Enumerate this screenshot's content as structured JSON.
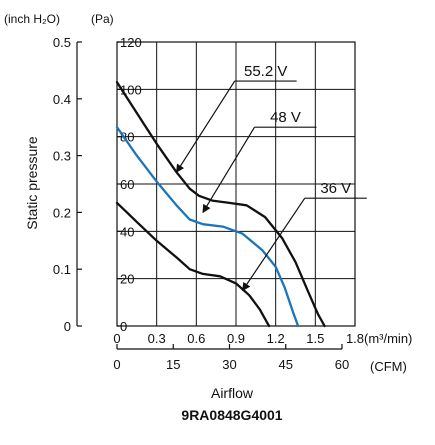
{
  "chart_data": {
    "type": "line",
    "title": "9RA0848G4001",
    "xlabel": "Airflow",
    "ylabel": "Static pressure",
    "primary_x_unit": "(m³/min)",
    "secondary_x_unit": "(CFM)",
    "left_unit": "(inch H₂O)",
    "pa_unit": "(Pa)",
    "xlim": [
      0,
      1.8
    ],
    "ylim": [
      0,
      120
    ],
    "grid": true,
    "x_ticks": [
      "0",
      "0.3",
      "0.6",
      "0.9",
      "1.2",
      "1.5",
      "1.8"
    ],
    "cfm_ticks": [
      "0",
      "15",
      "30",
      "45",
      "60"
    ],
    "cfm_values": [
      0,
      15,
      30,
      45,
      60
    ],
    "pa_ticks": [
      "0",
      "20",
      "40",
      "60",
      "80",
      "100",
      "120"
    ],
    "pa_values": [
      0,
      20,
      40,
      60,
      80,
      100,
      120
    ],
    "inch_ticks": [
      "0",
      "0.1",
      "0.2",
      "0.3",
      "0.4",
      "0.5"
    ],
    "inch_values": [
      0,
      0.1,
      0.2,
      0.3,
      0.4,
      0.5
    ],
    "series": [
      {
        "name": "55.2 V",
        "color": "#111111",
        "points": [
          [
            0,
            103
          ],
          [
            0.15,
            90
          ],
          [
            0.3,
            77
          ],
          [
            0.45,
            65
          ],
          [
            0.55,
            58
          ],
          [
            0.62,
            55
          ],
          [
            0.72,
            53
          ],
          [
            0.85,
            52
          ],
          [
            0.98,
            51
          ],
          [
            1.12,
            46
          ],
          [
            1.25,
            37
          ],
          [
            1.35,
            27
          ],
          [
            1.45,
            14
          ],
          [
            1.52,
            5
          ],
          [
            1.57,
            0
          ]
        ],
        "label_anchor": [
          0.45,
          65
        ],
        "label_box": [
          0.89,
          103.5
        ]
      },
      {
        "name": "48 V",
        "color": "#1a75bc",
        "points": [
          [
            0,
            84
          ],
          [
            0.15,
            72
          ],
          [
            0.3,
            61
          ],
          [
            0.45,
            51
          ],
          [
            0.55,
            45
          ],
          [
            0.65,
            43
          ],
          [
            0.8,
            42
          ],
          [
            0.95,
            39
          ],
          [
            1.1,
            32
          ],
          [
            1.2,
            25
          ],
          [
            1.27,
            16
          ],
          [
            1.33,
            6
          ],
          [
            1.37,
            0
          ]
        ],
        "label_anchor": [
          0.65,
          48
        ],
        "label_box": [
          1.04,
          84
        ]
      },
      {
        "name": "36 V",
        "color": "#111111",
        "points": [
          [
            0,
            52
          ],
          [
            0.15,
            44
          ],
          [
            0.3,
            36
          ],
          [
            0.45,
            29
          ],
          [
            0.55,
            24
          ],
          [
            0.65,
            22
          ],
          [
            0.78,
            21
          ],
          [
            0.9,
            18
          ],
          [
            1.0,
            13
          ],
          [
            1.08,
            7
          ],
          [
            1.13,
            2
          ],
          [
            1.15,
            0
          ]
        ],
        "label_anchor": [
          0.95,
          15
        ],
        "label_box": [
          1.42,
          54
        ]
      }
    ]
  }
}
